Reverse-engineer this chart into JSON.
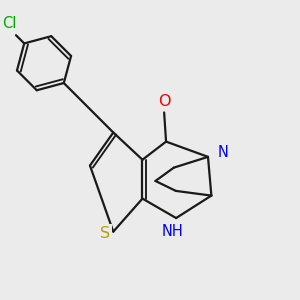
{
  "bg_color": "#ebebeb",
  "bond_color": "#1a1a1a",
  "bond_width": 1.6,
  "atom_colors": {
    "S": "#b8a000",
    "N": "#0000ee",
    "O": "#ee0000",
    "Cl": "#00aa00",
    "C": "#1a1a1a"
  },
  "font_size_atom": 10.5
}
